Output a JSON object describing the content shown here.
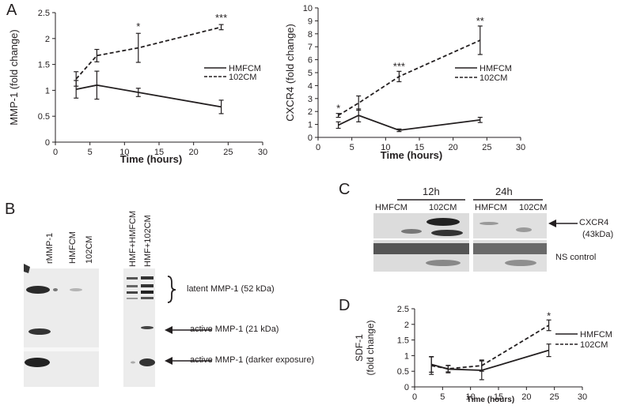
{
  "panels": {
    "a": "A",
    "b": "B",
    "c": "C",
    "d": "D"
  },
  "chart_data": [
    {
      "id": "mmp1",
      "type": "line",
      "ylabel": "MMP-1 (fold change)",
      "xlabel": "Time (hours)",
      "xlim": [
        0,
        30
      ],
      "ylim": [
        0,
        2.5
      ],
      "xticks": [
        "0",
        "5",
        "10",
        "15",
        "20",
        "25",
        "30"
      ],
      "yticks": [
        "0",
        "0.5",
        "1",
        "1.5",
        "2",
        "2.5"
      ],
      "legend_position": "right",
      "series": [
        {
          "name": "HMFCM",
          "style": "solid",
          "x": [
            3,
            6,
            12,
            24
          ],
          "y": [
            1.02,
            1.1,
            0.96,
            0.68
          ],
          "err": [
            0.17,
            0.27,
            0.08,
            0.13
          ]
        },
        {
          "name": "102CM",
          "style": "dashed",
          "x": [
            3,
            6,
            12,
            24
          ],
          "y": [
            1.22,
            1.67,
            1.82,
            2.22
          ],
          "err": [
            0.14,
            0.12,
            0.28,
            0.05
          ]
        }
      ],
      "annotations": [
        {
          "text": "*",
          "x": 12
        },
        {
          "text": "***",
          "x": 24
        }
      ]
    },
    {
      "id": "cxcr4",
      "type": "line",
      "ylabel": "CXCR4 (fold change)",
      "xlabel": "Time (hours)",
      "xlim": [
        0,
        30
      ],
      "ylim": [
        0,
        10
      ],
      "xticks": [
        "0",
        "5",
        "10",
        "15",
        "20",
        "25",
        "30"
      ],
      "yticks": [
        "0",
        "1",
        "2",
        "3",
        "4",
        "5",
        "6",
        "7",
        "8",
        "9",
        "10"
      ],
      "legend_position": "right",
      "series": [
        {
          "name": "HMFCM",
          "style": "solid",
          "x": [
            3,
            6,
            12,
            24
          ],
          "y": [
            0.95,
            1.7,
            0.55,
            1.35
          ],
          "err": [
            0.25,
            0.5,
            0.1,
            0.2
          ]
        },
        {
          "name": "102CM",
          "style": "dashed",
          "x": [
            3,
            6,
            12,
            24
          ],
          "y": [
            1.7,
            2.65,
            4.7,
            7.5
          ],
          "err": [
            0.15,
            0.55,
            0.4,
            1.1
          ]
        }
      ],
      "annotations": [
        {
          "text": "*",
          "x": 3
        },
        {
          "text": "***",
          "x": 12
        },
        {
          "text": "**",
          "x": 24
        }
      ]
    },
    {
      "id": "sdf1",
      "type": "line",
      "ylabel": "SDF-1 (fold change)",
      "ylabel_lines": [
        "SDF-1",
        "(fold change)"
      ],
      "xlabel": "Time (hours)",
      "xlim": [
        0,
        30
      ],
      "ylim": [
        0,
        2.5
      ],
      "xticks": [
        "0",
        "5",
        "10",
        "15",
        "20",
        "25",
        "30"
      ],
      "yticks": [
        "0",
        "0.5",
        "1",
        "1.5",
        "2",
        "2.5"
      ],
      "legend_position": "right",
      "series": [
        {
          "name": "HMFCM",
          "style": "solid",
          "x": [
            3,
            6,
            12,
            24
          ],
          "y": [
            0.72,
            0.57,
            0.53,
            1.17
          ],
          "err": [
            0.25,
            0.12,
            0.3,
            0.2
          ]
        },
        {
          "name": "102CM",
          "style": "dashed",
          "x": [
            3,
            6,
            12,
            24
          ],
          "y": [
            0.68,
            0.58,
            0.68,
            1.97
          ],
          "err": [
            0.28,
            0.1,
            0.18,
            0.17
          ]
        }
      ],
      "annotations": [
        {
          "text": "*",
          "x": 24
        }
      ]
    }
  ],
  "blot_b": {
    "lanes_left": [
      "rMMP-1",
      "HMFCM",
      "102CM"
    ],
    "lanes_right": [
      "HMF+HMFCM",
      "HMF+102CM"
    ],
    "latent_label": "latent MMP-1 (52 kDa)",
    "active_label": "active MMP-1 (21 kDa)",
    "darker_label": "active MMP-1 (darker exposure)"
  },
  "blot_c": {
    "time_left": "12h",
    "time_right": "24h",
    "lanes_left": [
      "HMFCM",
      "102CM"
    ],
    "lanes_right": [
      "HMFCM",
      "102CM"
    ],
    "target_label": "CXCR4",
    "target_size": "(43kDa)",
    "control_label": "NS control"
  }
}
